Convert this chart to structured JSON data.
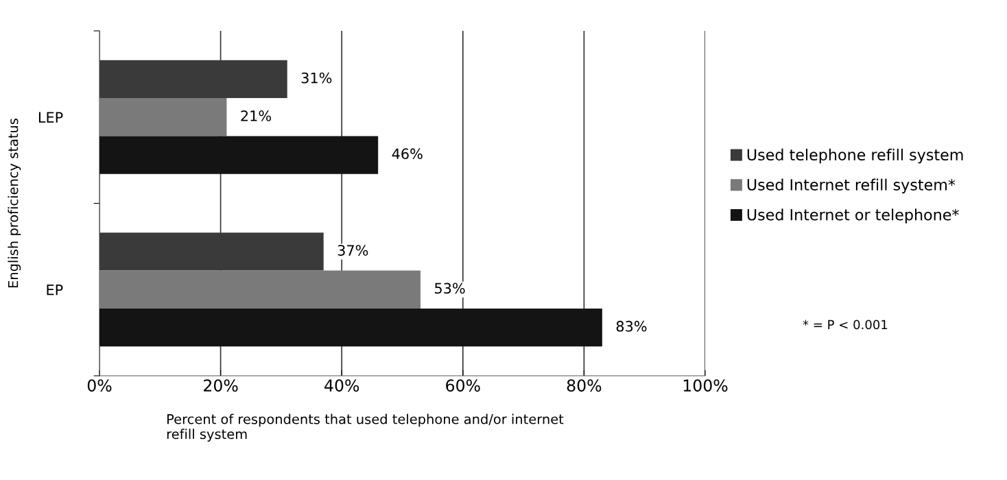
{
  "chart_data": {
    "type": "bar",
    "orientation": "horizontal",
    "categories": [
      "LEP",
      "EP"
    ],
    "series": [
      {
        "name": "Used telephone refill system",
        "color": "#3a3a3a",
        "values": [
          31,
          37
        ],
        "value_labels": [
          "31%",
          "37%"
        ]
      },
      {
        "name": "Used Internet refill system*",
        "color": "#7a7a7a",
        "values": [
          21,
          53
        ],
        "value_labels": [
          "21%",
          "53%"
        ]
      },
      {
        "name": "Used Internet or telephone*",
        "color": "#141414",
        "values": [
          46,
          83
        ],
        "value_labels": [
          "46%",
          "83%"
        ]
      }
    ],
    "xlim": [
      0,
      100
    ],
    "xticks": [
      {
        "value": 0,
        "label": "0%"
      },
      {
        "value": 20,
        "label": "20%"
      },
      {
        "value": 40,
        "label": "40%"
      },
      {
        "value": 60,
        "label": "60%"
      },
      {
        "value": 80,
        "label": "80%"
      },
      {
        "value": 100,
        "label": "100%"
      }
    ],
    "xlabel": "Percent of respondents that used telephone and/or internet\nrefill system",
    "ylabel": "English proficiency status",
    "grid": "x",
    "legend": "right",
    "annotations": [
      "* = P < 0.001"
    ]
  }
}
